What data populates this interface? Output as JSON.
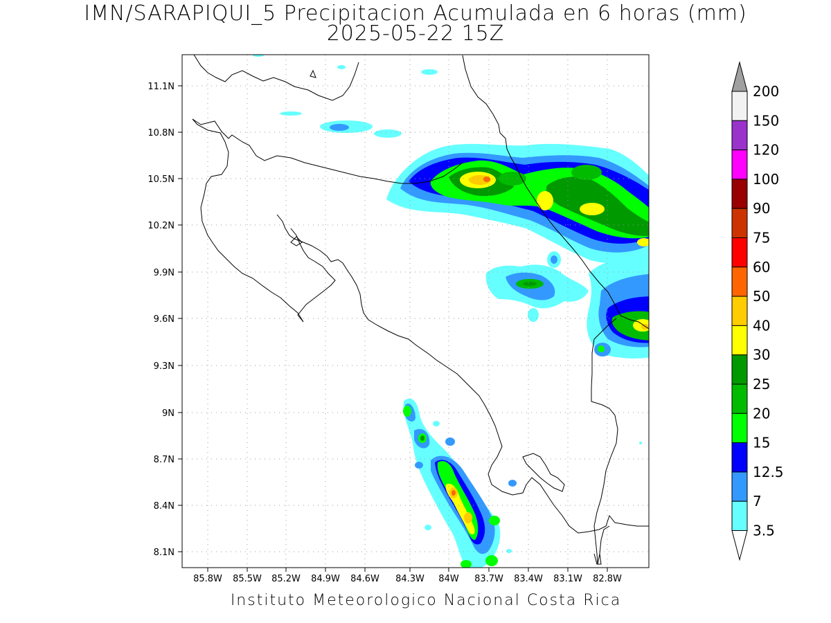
{
  "header": {
    "title_line1": "IMN/SARAPIQUI_5 Precipitacion Acumulada en 6 horas (mm)",
    "title_line2": "2025-05-22 15Z"
  },
  "footer": {
    "text": "Instituto Meteorologico Nacional Costa Rica"
  },
  "map": {
    "lon_range": [
      -86.0,
      -82.6
    ],
    "lat_range": [
      8.0,
      11.3
    ],
    "lon_ticks": [
      "85.8W",
      "85.5W",
      "85.2W",
      "84.9W",
      "84.6W",
      "84.3W",
      "84W",
      "83.7W",
      "83.4W",
      "83.1W",
      "82.8W"
    ],
    "lat_ticks": [
      "11.1N",
      "10.8N",
      "10.5N",
      "10.2N",
      "9.9N",
      "9.6N",
      "9.3N",
      "9N",
      "8.7N",
      "8.4N",
      "8.1N"
    ],
    "grid": "dotted",
    "region": "Costa Rica"
  },
  "colorbar": {
    "labels": [
      "200",
      "150",
      "120",
      "100",
      "90",
      "75",
      "60",
      "50",
      "40",
      "30",
      "25",
      "20",
      "15",
      "12.5",
      "7",
      "3.5"
    ],
    "colors": [
      "#f2f2f2",
      "#9933cc",
      "#ff00ff",
      "#990000",
      "#cc3300",
      "#ff0000",
      "#ff6600",
      "#ffcc00",
      "#ffff00",
      "#009900",
      "#00bb00",
      "#00ff00",
      "#0000ff",
      "#3399ff",
      "#66ffff"
    ],
    "over_color": "#a0a0a0",
    "under_color": "#ffffff"
  },
  "palette": {
    "lt": "#66ffff",
    "md": "#3399ff",
    "dk": "#0000ff",
    "g1": "#00ff00",
    "g2": "#00bb00",
    "g3": "#009900",
    "y": "#ffff00",
    "o": "#ffcc00",
    "r": "#ff6600"
  }
}
